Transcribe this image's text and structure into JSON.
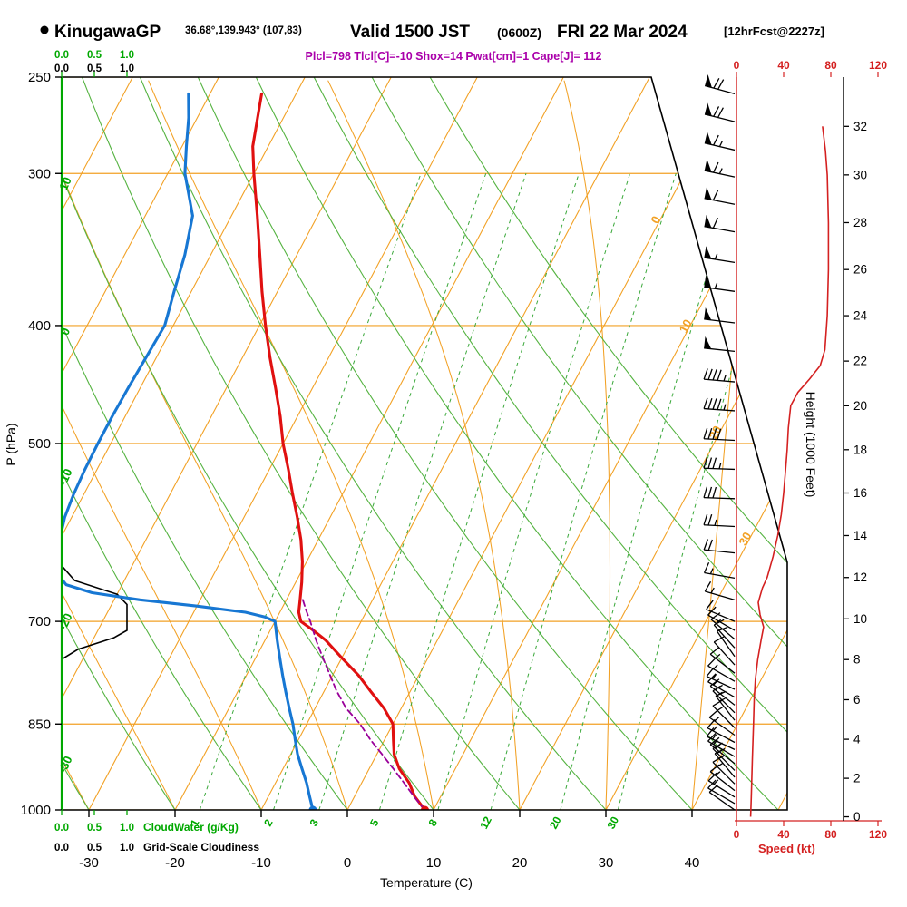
{
  "header": {
    "station": "KinugawaGP",
    "coords": "36.68°,139.943° (107,83)",
    "valid_main": "Valid 1500 JST",
    "valid_z": "(0600Z)",
    "valid_date": "FRI 22 Mar 2024",
    "fcst_tag": "[12hrFcst@2227z]",
    "indices": "Plcl=798 Tlcl[C]=-10 Shox=14 Pwat[cm]=1 Cape[J]= 112"
  },
  "axis_titles": {
    "pressure": "P (hPa)",
    "temperature": "Temperature (C)",
    "height": "Height (1000 Feet)",
    "speed": "Speed (kt)",
    "cloudwater": "CloudWater (g/Kg)",
    "cloudiness": "Grid-Scale Cloudiness"
  },
  "scales": {
    "pressure_ticks": [
      250,
      300,
      400,
      500,
      700,
      850,
      1000
    ],
    "temp_ticks": [
      -30,
      -20,
      -10,
      0,
      10,
      20,
      30,
      40
    ],
    "height_ticks": [
      0,
      2,
      4,
      6,
      8,
      10,
      12,
      14,
      16,
      18,
      20,
      22,
      24,
      26,
      28,
      30,
      32
    ],
    "speed_ticks": [
      0,
      40,
      80,
      120
    ],
    "cloud_scale_ticks": [
      "0.0",
      "0.5",
      "1.0"
    ],
    "isotherm_labels": [
      0,
      10,
      20,
      30
    ],
    "dry_adiabat_labels": [
      10,
      0,
      -10,
      -20,
      -30
    ],
    "mixing_ratio_labels": [
      1,
      2,
      3,
      5,
      8,
      12,
      20,
      30
    ]
  },
  "colors": {
    "grid_orange": "#f2a125",
    "adiabat_green": "#55b341",
    "mixing_green": "#3aa83a",
    "label_green": "#00a800",
    "temperature_red": "#e01010",
    "dewpoint_blue": "#1777d3",
    "parcel_purple": "#990099",
    "indices_purple": "#aa00aa",
    "speed_red": "#d42020",
    "barb_black": "#000000"
  },
  "chart_data": {
    "type": "line",
    "title": "Skew-T log-P sounding, KinugawaGP, valid 1500 JST (0600Z) FRI 22 Mar 2024",
    "x_axis": {
      "label": "Temperature (C)",
      "ticks": [
        -30,
        -20,
        -10,
        0,
        10,
        20,
        30,
        40
      ]
    },
    "y_axis": {
      "label": "P (hPa)",
      "scale": "log",
      "range": [
        1000,
        250
      ]
    },
    "indices": {
      "Plcl": 798,
      "Tlcl_C": -10,
      "Shox": 14,
      "Pwat_cm": 1,
      "Cape_J": 112
    },
    "series": [
      {
        "name": "temperature",
        "color": "#e01010",
        "style": "solid",
        "points": [
          [
            1000,
            9
          ],
          [
            975,
            7
          ],
          [
            950,
            5.5
          ],
          [
            925,
            3.5
          ],
          [
            900,
            2
          ],
          [
            875,
            1
          ],
          [
            850,
            0
          ],
          [
            825,
            -2
          ],
          [
            800,
            -4.5
          ],
          [
            775,
            -7
          ],
          [
            750,
            -10
          ],
          [
            725,
            -13
          ],
          [
            712,
            -15
          ],
          [
            700,
            -17
          ],
          [
            688,
            -17.8
          ],
          [
            675,
            -18.3
          ],
          [
            650,
            -19.3
          ],
          [
            625,
            -20.5
          ],
          [
            600,
            -22
          ],
          [
            575,
            -23.8
          ],
          [
            550,
            -25.8
          ],
          [
            525,
            -27.8
          ],
          [
            500,
            -30
          ],
          [
            475,
            -32
          ],
          [
            450,
            -34.3
          ],
          [
            425,
            -36.8
          ],
          [
            400,
            -39.3
          ],
          [
            375,
            -41.8
          ],
          [
            350,
            -44.3
          ],
          [
            325,
            -47
          ],
          [
            300,
            -50
          ],
          [
            285,
            -51.8
          ],
          [
            270,
            -53
          ],
          [
            258,
            -54
          ]
        ]
      },
      {
        "name": "dewpoint",
        "color": "#1777d3",
        "style": "solid",
        "points": [
          [
            1000,
            -4
          ],
          [
            975,
            -5.2
          ],
          [
            950,
            -6.4
          ],
          [
            925,
            -7.8
          ],
          [
            900,
            -9.2
          ],
          [
            875,
            -10.4
          ],
          [
            850,
            -11.6
          ],
          [
            825,
            -13
          ],
          [
            800,
            -14.4
          ],
          [
            775,
            -15.8
          ],
          [
            750,
            -17.2
          ],
          [
            725,
            -18.6
          ],
          [
            700,
            -20
          ],
          [
            694,
            -21.5
          ],
          [
            688,
            -24
          ],
          [
            680,
            -30
          ],
          [
            672,
            -37
          ],
          [
            663,
            -43
          ],
          [
            653,
            -46.5
          ],
          [
            645,
            -47.5
          ],
          [
            625,
            -49
          ],
          [
            600,
            -50
          ],
          [
            575,
            -50.8
          ],
          [
            550,
            -51.2
          ],
          [
            525,
            -51.4
          ],
          [
            500,
            -51.5
          ],
          [
            475,
            -51.5
          ],
          [
            450,
            -51.4
          ],
          [
            425,
            -51.2
          ],
          [
            400,
            -51
          ],
          [
            375,
            -52
          ],
          [
            350,
            -53
          ],
          [
            325,
            -54.5
          ],
          [
            300,
            -58
          ],
          [
            285,
            -59.5
          ],
          [
            270,
            -61
          ],
          [
            258,
            -62.5
          ]
        ]
      },
      {
        "name": "parcel",
        "color": "#990099",
        "style": "dashed",
        "points": [
          [
            1000,
            9
          ],
          [
            975,
            6.9
          ],
          [
            950,
            4.9
          ],
          [
            925,
            2.8
          ],
          [
            900,
            0.6
          ],
          [
            875,
            -1.7
          ],
          [
            850,
            -3.8
          ],
          [
            825,
            -6.4
          ],
          [
            798,
            -8.6
          ],
          [
            775,
            -10.3
          ],
          [
            750,
            -12.2
          ],
          [
            725,
            -14.1
          ],
          [
            700,
            -15.9
          ],
          [
            685,
            -17.1
          ],
          [
            668,
            -18.4
          ]
        ]
      }
    ],
    "surface_markers": [
      {
        "name": "surface-temperature",
        "p": 1000,
        "t": 9,
        "color": "#e01010"
      },
      {
        "name": "surface-dewpoint",
        "p": 1000,
        "t": -4,
        "color": "#1777d3"
      }
    ],
    "wind_barbs": [
      {
        "p": 258,
        "spd": 70,
        "dir": 285
      },
      {
        "p": 272,
        "spd": 68,
        "dir": 284
      },
      {
        "p": 287,
        "spd": 66,
        "dir": 283
      },
      {
        "p": 302,
        "spd": 63,
        "dir": 282
      },
      {
        "p": 318,
        "spd": 60,
        "dir": 281
      },
      {
        "p": 335,
        "spd": 58,
        "dir": 280
      },
      {
        "p": 355,
        "spd": 56,
        "dir": 279
      },
      {
        "p": 375,
        "spd": 54,
        "dir": 278
      },
      {
        "p": 398,
        "spd": 52,
        "dir": 277
      },
      {
        "p": 420,
        "spd": 50,
        "dir": 276
      },
      {
        "p": 445,
        "spd": 47,
        "dir": 275
      },
      {
        "p": 470,
        "spd": 44,
        "dir": 274
      },
      {
        "p": 497,
        "spd": 41,
        "dir": 273
      },
      {
        "p": 525,
        "spd": 37,
        "dir": 272
      },
      {
        "p": 555,
        "spd": 32,
        "dir": 272
      },
      {
        "p": 585,
        "spd": 27,
        "dir": 273
      },
      {
        "p": 615,
        "spd": 22,
        "dir": 276
      },
      {
        "p": 645,
        "spd": 17,
        "dir": 280
      },
      {
        "p": 672,
        "spd": 13,
        "dir": 286
      },
      {
        "p": 700,
        "spd": 10,
        "dir": 293
      },
      {
        "p": 712,
        "spd": 12,
        "dir": 300
      },
      {
        "p": 724,
        "spd": 13,
        "dir": 310
      },
      {
        "p": 736,
        "spd": 12,
        "dir": 318
      },
      {
        "p": 748,
        "spd": 11,
        "dir": 325
      },
      {
        "p": 760,
        "spd": 12,
        "dir": 318
      },
      {
        "p": 772,
        "spd": 13,
        "dir": 308
      },
      {
        "p": 784,
        "spd": 14,
        "dir": 300
      },
      {
        "p": 796,
        "spd": 15,
        "dir": 295
      },
      {
        "p": 808,
        "spd": 15,
        "dir": 300
      },
      {
        "p": 820,
        "spd": 14,
        "dir": 308
      },
      {
        "p": 832,
        "spd": 13,
        "dir": 315
      },
      {
        "p": 844,
        "spd": 13,
        "dir": 322
      },
      {
        "p": 856,
        "spd": 14,
        "dir": 315
      },
      {
        "p": 868,
        "spd": 15,
        "dir": 305
      },
      {
        "p": 880,
        "spd": 16,
        "dir": 298
      },
      {
        "p": 892,
        "spd": 16,
        "dir": 295
      },
      {
        "p": 904,
        "spd": 15,
        "dir": 300
      },
      {
        "p": 916,
        "spd": 14,
        "dir": 308
      },
      {
        "p": 928,
        "spd": 13,
        "dir": 315
      },
      {
        "p": 940,
        "spd": 13,
        "dir": 320
      },
      {
        "p": 952,
        "spd": 14,
        "dir": 315
      },
      {
        "p": 964,
        "spd": 14,
        "dir": 308
      },
      {
        "p": 976,
        "spd": 13,
        "dir": 302
      },
      {
        "p": 988,
        "spd": 12,
        "dir": 300
      },
      {
        "p": 1000,
        "spd": 10,
        "dir": 305
      }
    ],
    "speed_profile": {
      "units_x": "kt",
      "units_y": "1000 Feet",
      "points": [
        [
          0,
          12
        ],
        [
          1,
          12.5
        ],
        [
          2,
          13
        ],
        [
          3,
          13.5
        ],
        [
          4,
          14
        ],
        [
          5,
          14.5
        ],
        [
          6,
          15
        ],
        [
          7,
          16
        ],
        [
          8,
          18
        ],
        [
          9,
          21
        ],
        [
          9.6,
          23
        ],
        [
          10.2,
          20
        ],
        [
          10.8,
          18.5
        ],
        [
          11.5,
          22
        ],
        [
          12,
          26
        ],
        [
          13,
          31
        ],
        [
          14,
          35
        ],
        [
          15,
          38
        ],
        [
          16,
          40
        ],
        [
          17,
          41.5
        ],
        [
          18,
          43
        ],
        [
          19,
          44
        ],
        [
          20,
          46
        ],
        [
          20.6,
          52
        ],
        [
          21.2,
          62
        ],
        [
          21.8,
          71
        ],
        [
          22.5,
          75
        ],
        [
          24,
          77
        ],
        [
          26,
          78
        ],
        [
          28,
          78
        ],
        [
          30,
          77
        ],
        [
          31,
          75.5
        ],
        [
          32,
          73
        ]
      ]
    },
    "cloudiness_profile": {
      "units": "fraction 0-1",
      "points": [
        [
          250,
          0
        ],
        [
          630,
          0
        ],
        [
          648,
          0.2
        ],
        [
          665,
          0.85
        ],
        [
          678,
          1
        ],
        [
          712,
          1
        ],
        [
          722,
          0.8
        ],
        [
          738,
          0.25
        ],
        [
          752,
          0
        ],
        [
          1000,
          0
        ]
      ]
    },
    "cloudwater_profile": {
      "units": "g/Kg",
      "points": [
        [
          250,
          0
        ],
        [
          1000,
          0
        ]
      ]
    }
  }
}
